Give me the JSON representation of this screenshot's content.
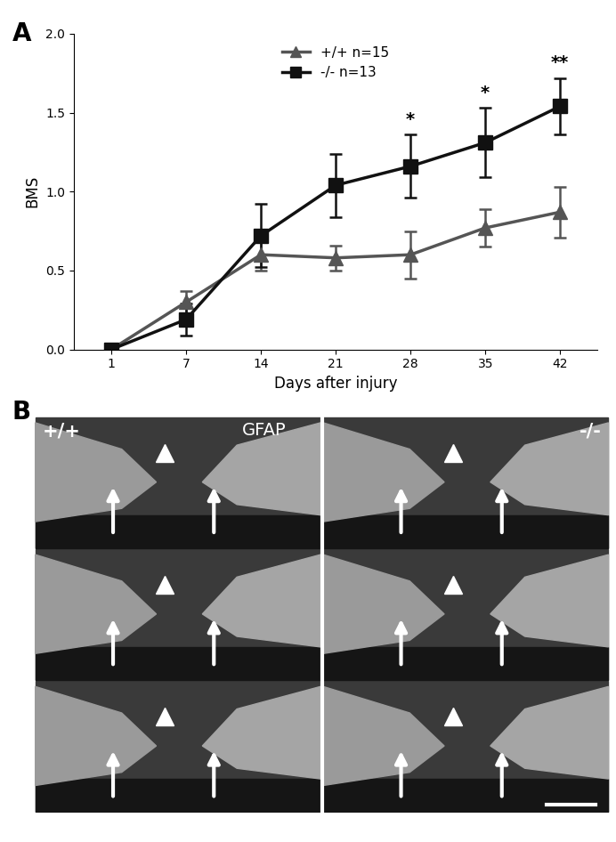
{
  "chart_data": {
    "type": "line",
    "y_label": "BMS",
    "x_label": "Days after injury",
    "categories": [
      "1",
      "7",
      "14",
      "21",
      "28",
      "35",
      "42"
    ],
    "ylim": [
      0,
      2
    ],
    "yticks": [
      {
        "value": 0,
        "label": "0.0"
      },
      {
        "value": 0.5,
        "label": "0.5"
      },
      {
        "value": 1,
        "label": "1.0"
      },
      {
        "value": 1.5,
        "label": "1.5"
      },
      {
        "value": 2,
        "label": "2.0"
      }
    ],
    "legend": "upper center",
    "grid": false,
    "series": [
      {
        "name": "+/+ n=15",
        "color": "#555555",
        "marker": "triangle",
        "line_style": "solid",
        "values": [
          0.0,
          0.3,
          0.6,
          0.58,
          0.6,
          0.77,
          0.87
        ],
        "errors": [
          0.02,
          0.07,
          0.1,
          0.08,
          0.15,
          0.12,
          0.16
        ]
      },
      {
        "name": "-/- n=13",
        "color": "#111111",
        "marker": "square",
        "line_style": "solid",
        "values": [
          0.0,
          0.19,
          0.72,
          1.04,
          1.16,
          1.31,
          1.54
        ],
        "errors": [
          0.02,
          0.1,
          0.2,
          0.2,
          0.2,
          0.22,
          0.18
        ]
      }
    ],
    "annotations": [
      {
        "text": "*",
        "category": "28"
      },
      {
        "text": "*",
        "category": "35"
      },
      {
        "text": "**",
        "category": "42"
      }
    ],
    "panel_label": "A"
  },
  "image_panel": {
    "panel_label": "B",
    "stain": "GFAP",
    "left_genotype": "+/+",
    "right_genotype": "-/-"
  }
}
